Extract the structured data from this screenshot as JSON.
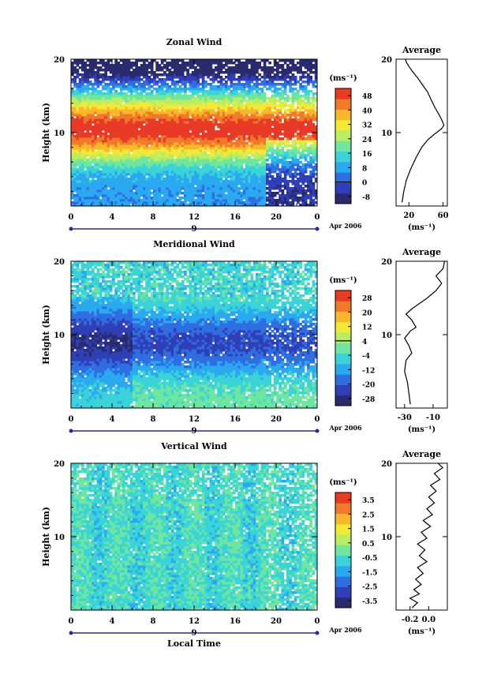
{
  "shared": {
    "xlabel": "Local Time",
    "x_ticks": [
      "0",
      "4",
      "8",
      "12",
      "16",
      "20",
      "0"
    ],
    "date_marker": "9",
    "date_label": "Apr 2006",
    "ylabel": "Height (km)",
    "y_ticks": [
      "",
      "10",
      "20"
    ],
    "unit_label": "(ms⁻¹)",
    "avg_title": "Average"
  },
  "chart_data": [
    {
      "type": "heatmap",
      "title": "Zonal Wind",
      "xlabel": "",
      "ylabel": "Height (km)",
      "x_range": [
        0,
        24
      ],
      "y_range": [
        0,
        20
      ],
      "colorbar": {
        "label": "(ms⁻¹)",
        "ticks": [
          "48",
          "40",
          "32",
          "24",
          "16",
          "8",
          "0",
          "-8"
        ],
        "range": [
          -12,
          52
        ],
        "contour_at": "0"
      },
      "profile": {
        "title": "Average",
        "x_ticks": [
          "20",
          "60"
        ],
        "xlabel": "(ms⁻¹)",
        "x_range": [
          5,
          65
        ],
        "points": [
          [
            12,
            0.5
          ],
          [
            14,
            2
          ],
          [
            17,
            3.5
          ],
          [
            22,
            5
          ],
          [
            28,
            6.5
          ],
          [
            35,
            8
          ],
          [
            42,
            9
          ],
          [
            50,
            9.8
          ],
          [
            58,
            10.5
          ],
          [
            61,
            11
          ],
          [
            59,
            11.6
          ],
          [
            55,
            12.5
          ],
          [
            50,
            13.5
          ],
          [
            46,
            14.5
          ],
          [
            42,
            15.5
          ],
          [
            36,
            16.5
          ],
          [
            30,
            17.5
          ],
          [
            25,
            18.2
          ],
          [
            20,
            19
          ],
          [
            17,
            19.6
          ],
          [
            16,
            20
          ]
        ]
      }
    },
    {
      "type": "heatmap",
      "title": "Meridional Wind",
      "xlabel": "",
      "ylabel": "Height (km)",
      "x_range": [
        0,
        24
      ],
      "y_range": [
        0,
        20
      ],
      "colorbar": {
        "label": "(ms⁻¹)",
        "ticks": [
          "28",
          "20",
          "12",
          "4",
          "-4",
          "-12",
          "-20",
          "-28"
        ],
        "range": [
          -32,
          32
        ],
        "contour_at": "4"
      },
      "profile": {
        "title": "Average",
        "x_ticks": [
          "-30",
          "-10"
        ],
        "xlabel": "(ms⁻¹)",
        "x_range": [
          -36,
          0
        ],
        "points": [
          [
            -26,
            0.5
          ],
          [
            -27,
            2
          ],
          [
            -28,
            3.5
          ],
          [
            -30,
            5
          ],
          [
            -29,
            6.5
          ],
          [
            -25,
            7.5
          ],
          [
            -27,
            8.5
          ],
          [
            -30,
            9.5
          ],
          [
            -26,
            10.5
          ],
          [
            -22,
            11
          ],
          [
            -25,
            12
          ],
          [
            -29,
            12.8
          ],
          [
            -25,
            13.5
          ],
          [
            -14,
            15
          ],
          [
            -8,
            16
          ],
          [
            -4,
            17
          ],
          [
            -8,
            18
          ],
          [
            -3,
            19
          ],
          [
            -2,
            20
          ]
        ]
      }
    },
    {
      "type": "heatmap",
      "title": "Vertical Wind",
      "xlabel": "Local Time",
      "ylabel": "Height (km)",
      "x_range": [
        0,
        24
      ],
      "y_range": [
        0,
        20
      ],
      "colorbar": {
        "label": "(ms⁻¹)",
        "ticks": [
          "3.5",
          "2.5",
          "1.5",
          "0.5",
          "-0.5",
          "-1.5",
          "-2.5",
          "-3.5"
        ],
        "range": [
          -4,
          4
        ]
      },
      "profile": {
        "title": "Average",
        "x_ticks": [
          "-0.2",
          "0.0"
        ],
        "xlabel": "(ms⁻¹)",
        "x_range": [
          -0.35,
          0.2
        ],
        "points": [
          [
            -0.18,
            0.3
          ],
          [
            -0.12,
            1
          ],
          [
            -0.2,
            1.6
          ],
          [
            -0.1,
            2.2
          ],
          [
            -0.16,
            2.8
          ],
          [
            -0.08,
            3.5
          ],
          [
            -0.14,
            4.2
          ],
          [
            -0.06,
            5
          ],
          [
            -0.12,
            5.8
          ],
          [
            -0.02,
            6.6
          ],
          [
            -0.1,
            7.4
          ],
          [
            -0.04,
            8.2
          ],
          [
            -0.12,
            9
          ],
          [
            -0.02,
            9.8
          ],
          [
            -0.08,
            10.6
          ],
          [
            0.02,
            11.4
          ],
          [
            -0.06,
            12.2
          ],
          [
            0.04,
            13
          ],
          [
            -0.02,
            13.8
          ],
          [
            0.06,
            14.6
          ],
          [
            0.0,
            15.4
          ],
          [
            0.08,
            16.2
          ],
          [
            0.02,
            17
          ],
          [
            0.12,
            17.8
          ],
          [
            0.06,
            18.6
          ],
          [
            0.15,
            19.4
          ],
          [
            0.1,
            20
          ]
        ]
      }
    }
  ]
}
